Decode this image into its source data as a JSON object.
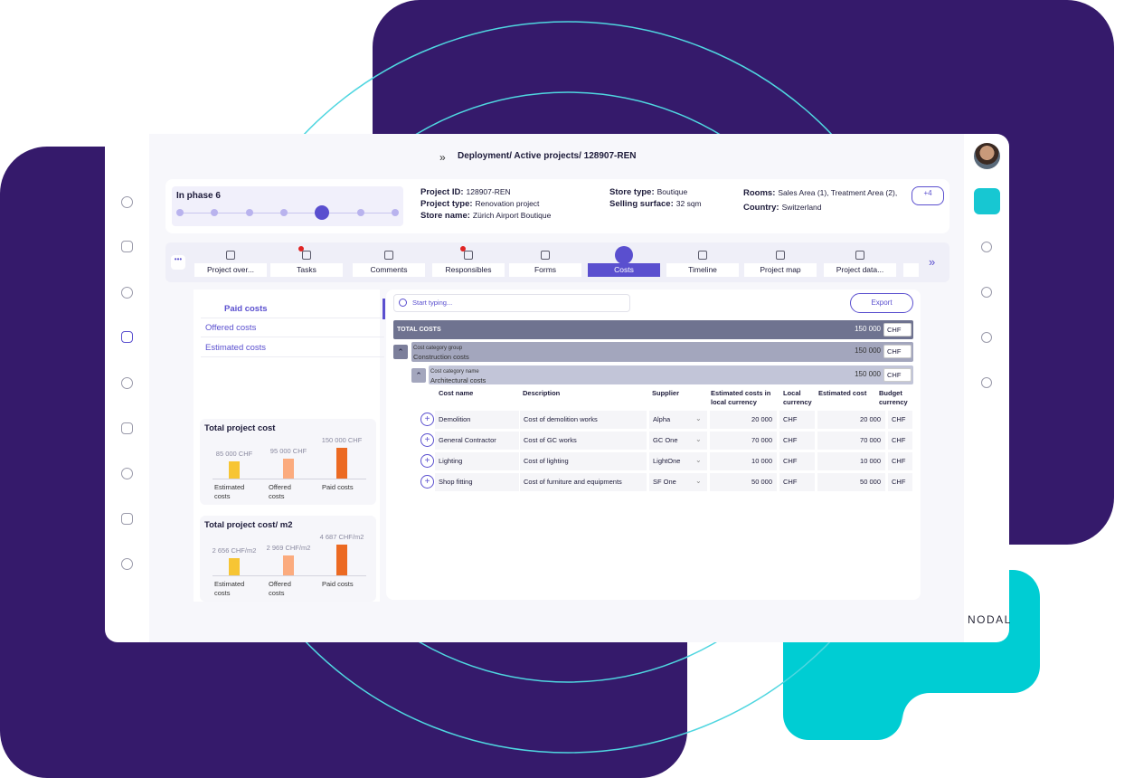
{
  "breadcrumb": "Deployment/ Active projects/ 128907-REN",
  "phase": "In phase 6",
  "project_fields": [
    {
      "label": "Project ID:",
      "value": "128907-REN"
    },
    {
      "label": "Project type:",
      "value": "Renovation project"
    },
    {
      "label": "Store name:",
      "value": "Zürich Airport Boutique"
    },
    {
      "label": "Store type:",
      "value": "Boutique"
    },
    {
      "label": "Selling surface:",
      "value": "32 sqm"
    },
    {
      "label": "Rooms:",
      "value": "Sales Area (1), Treatment Area (2),"
    },
    {
      "label": "Country:",
      "value": "Switzerland"
    }
  ],
  "more_rooms": "+4",
  "tabs": [
    "Project over...",
    "Tasks",
    "Comments",
    "Responsibles",
    "Forms",
    "Costs",
    "Timeline",
    "Project map",
    "Project data..."
  ],
  "active_tab": 5,
  "cost_menu": [
    "Paid costs",
    "Offered costs",
    "Estimated costs"
  ],
  "charts": [
    {
      "title": "Total project cost",
      "categories": [
        "Estimated costs",
        "Offered costs",
        "Paid costs"
      ],
      "values": [
        85000,
        95000,
        150000
      ],
      "value_labels": [
        "85 000 CHF",
        "95 000 CHF",
        "150 000 CHF"
      ],
      "colors": [
        "#f7c534",
        "#fbab7e",
        "#ec6a22"
      ]
    },
    {
      "title": "Total project cost/ m2",
      "categories": [
        "Estimated costs",
        "Offered costs",
        "Paid costs"
      ],
      "values": [
        2656,
        2969,
        4687
      ],
      "value_labels": [
        "2 656 CHF/m2",
        "2 969 CHF/m2",
        "4 687 CHF/m2"
      ],
      "colors": [
        "#f7c534",
        "#fbab7e",
        "#ec6a22"
      ]
    }
  ],
  "search_placeholder": "Start typing...",
  "export": "Export",
  "total": {
    "label": "TOTAL COSTS",
    "amount": "150 000",
    "currency": "CHF"
  },
  "group": {
    "caption": "Cost category group",
    "name": "Construction costs",
    "amount": "150 000",
    "currency": "CHF"
  },
  "category": {
    "caption": "Cost category name",
    "name": "Architectural costs",
    "amount": "150 000",
    "currency": "CHF"
  },
  "table": {
    "columns": [
      "Cost name",
      "Description",
      "Supplier",
      "Estimated costs in local currency",
      "Local currency",
      "Estimated cost",
      "Budget currency"
    ],
    "rows": [
      [
        "Demolition",
        "Cost of demolition works",
        "Alpha",
        "20 000",
        "CHF",
        "20 000",
        "CHF"
      ],
      [
        "General Contractor",
        "Cost of GC works",
        "GC One",
        "70 000",
        "CHF",
        "70 000",
        "CHF"
      ],
      [
        "Lighting",
        "Cost of lighting",
        "LightOne",
        "10 000",
        "CHF",
        "10 000",
        "CHF"
      ],
      [
        "Shop fitting",
        "Cost of furniture and equipments",
        "SF One",
        "50 000",
        "CHF",
        "50 000",
        "CHF"
      ]
    ]
  },
  "logo": "NODAL"
}
